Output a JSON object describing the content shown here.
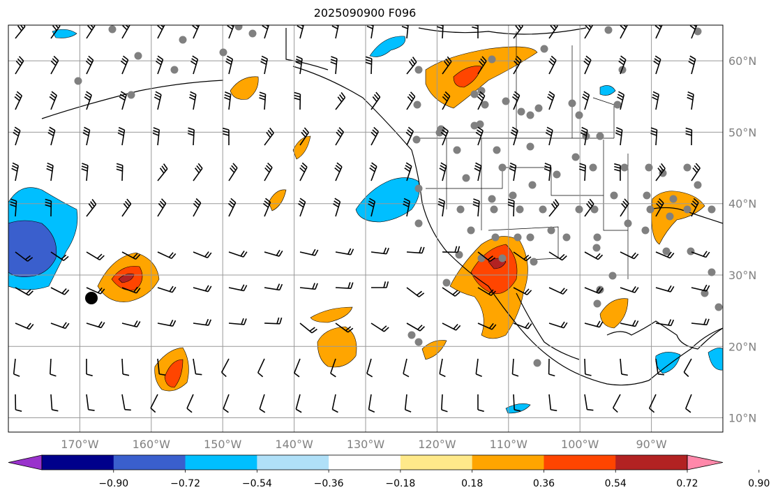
{
  "title": "2025090900 F096",
  "map": {
    "lon_range": [
      -180,
      -80
    ],
    "lat_range": [
      8,
      65
    ],
    "lon_ticks": [
      {
        "value": -170,
        "label": "170°W"
      },
      {
        "value": -160,
        "label": "160°W"
      },
      {
        "value": -150,
        "label": "150°W"
      },
      {
        "value": -140,
        "label": "140°W"
      },
      {
        "value": -130,
        "label": "130°W"
      },
      {
        "value": -120,
        "label": "120°W"
      },
      {
        "value": -110,
        "label": "110°W"
      },
      {
        "value": -100,
        "label": "100°W"
      },
      {
        "value": -90,
        "label": "90°W"
      }
    ],
    "lat_ticks": [
      {
        "value": 60,
        "label": "60°N"
      },
      {
        "value": 50,
        "label": "50°N"
      },
      {
        "value": 40,
        "label": "40°N"
      },
      {
        "value": 30,
        "label": "30°N"
      },
      {
        "value": 20,
        "label": "20°N"
      },
      {
        "value": 10,
        "label": "10°N"
      }
    ],
    "anomaly_colors": {
      "-0.99": "#9932cc",
      "-0.90": "#00008b",
      "-0.72": "#3a5fcd",
      "-0.54": "#00bfff",
      "-0.36": "#add8f0",
      "0.36": "#ffa500",
      "0.54": "#ff4500",
      "0.72": "#b22222"
    }
  },
  "colorbar": {
    "levels": [
      "−0.90",
      "−0.72",
      "−0.54",
      "−0.36",
      "−0.18",
      "0.18",
      "0.36",
      "0.54",
      "0.72",
      "0.90"
    ],
    "colors": [
      "#9932cc",
      "#00008b",
      "#3a5fcd",
      "#00bfff",
      "#b0e0f8",
      "#ffffff",
      "#ffe98a",
      "#ffa500",
      "#ff4500",
      "#b22222",
      "#ff88aa"
    ]
  }
}
